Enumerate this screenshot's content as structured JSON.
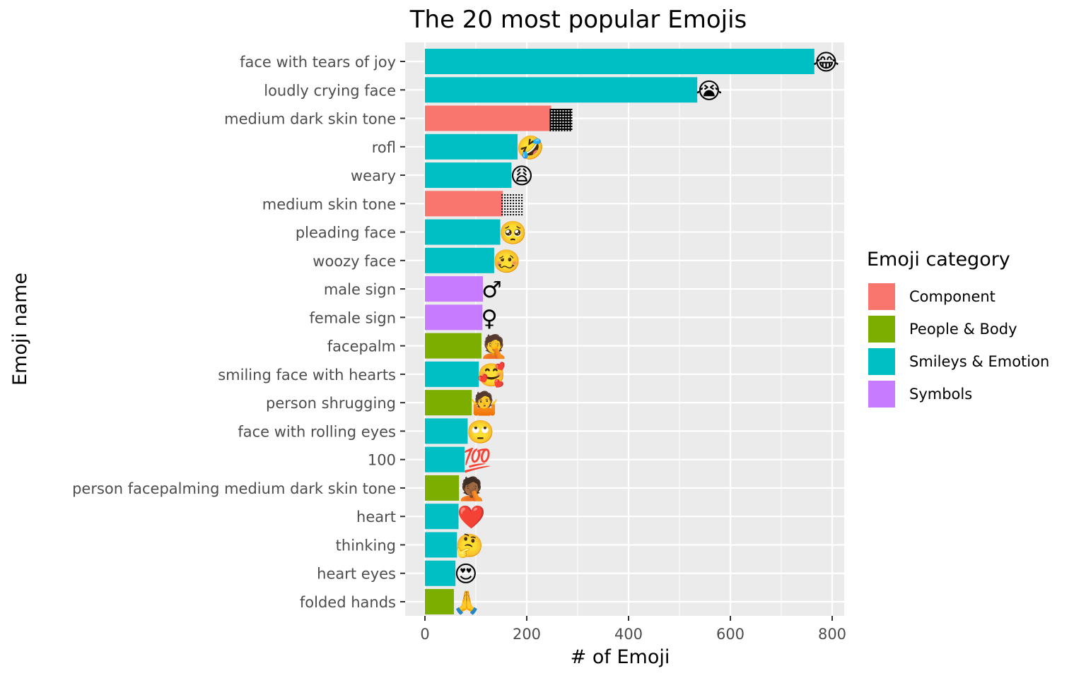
{
  "chart_data": {
    "type": "bar",
    "orientation": "horizontal",
    "title": "The 20 most popular Emojis",
    "xlabel": "# of Emoji",
    "ylabel": "Emoji name",
    "xlim": [
      0,
      800
    ],
    "x_ticks": [
      "0",
      "200",
      "400",
      "600",
      "800"
    ],
    "grid": true,
    "legend_title": "Emoji category",
    "legend_position": "right",
    "categories_legend": [
      {
        "name": "Component",
        "color": "#F8766D"
      },
      {
        "name": "People & Body",
        "color": "#7CAE00"
      },
      {
        "name": "Smileys & Emotion",
        "color": "#00BFC4"
      },
      {
        "name": "Symbols",
        "color": "#C77CFF"
      }
    ],
    "bars": [
      {
        "name": "face with tears of joy",
        "value": 765,
        "category": "Smileys & Emotion",
        "emoji": "😂"
      },
      {
        "name": "loudly crying face",
        "value": 535,
        "category": "Smileys & Emotion",
        "emoji": "😭"
      },
      {
        "name": "medium dark skin tone",
        "value": 248,
        "category": "Component",
        "emoji": "🏾"
      },
      {
        "name": "rofl",
        "value": 182,
        "category": "Smileys & Emotion",
        "emoji": "🤣"
      },
      {
        "name": "weary",
        "value": 170,
        "category": "Smileys & Emotion",
        "emoji": "😩"
      },
      {
        "name": "medium skin tone",
        "value": 153,
        "category": "Component",
        "emoji": "🏽"
      },
      {
        "name": "pleading face",
        "value": 148,
        "category": "Smileys & Emotion",
        "emoji": "🥺"
      },
      {
        "name": "woozy face",
        "value": 136,
        "category": "Smileys & Emotion",
        "emoji": "🥴"
      },
      {
        "name": "male sign",
        "value": 114,
        "category": "Symbols",
        "emoji": "♂"
      },
      {
        "name": "female sign",
        "value": 113,
        "category": "Symbols",
        "emoji": "♀"
      },
      {
        "name": "facepalm",
        "value": 111,
        "category": "People & Body",
        "emoji": "🤦"
      },
      {
        "name": "smiling face with hearts",
        "value": 106,
        "category": "Smileys & Emotion",
        "emoji": "🥰"
      },
      {
        "name": "person shrugging",
        "value": 92,
        "category": "People & Body",
        "emoji": "🤷"
      },
      {
        "name": "face with rolling eyes",
        "value": 84,
        "category": "Smileys & Emotion",
        "emoji": "🙄"
      },
      {
        "name": "100",
        "value": 78,
        "category": "Smileys & Emotion",
        "emoji": "💯"
      },
      {
        "name": "person facepalming medium dark skin tone",
        "value": 67,
        "category": "People & Body",
        "emoji": "🤦🏾"
      },
      {
        "name": "heart",
        "value": 66,
        "category": "Smileys & Emotion",
        "emoji": "❤️"
      },
      {
        "name": "thinking",
        "value": 63,
        "category": "Smileys & Emotion",
        "emoji": "🤔"
      },
      {
        "name": "heart eyes",
        "value": 60,
        "category": "Smileys & Emotion",
        "emoji": "😍"
      },
      {
        "name": "folded hands",
        "value": 57,
        "category": "People & Body",
        "emoji": "🙏"
      }
    ]
  }
}
